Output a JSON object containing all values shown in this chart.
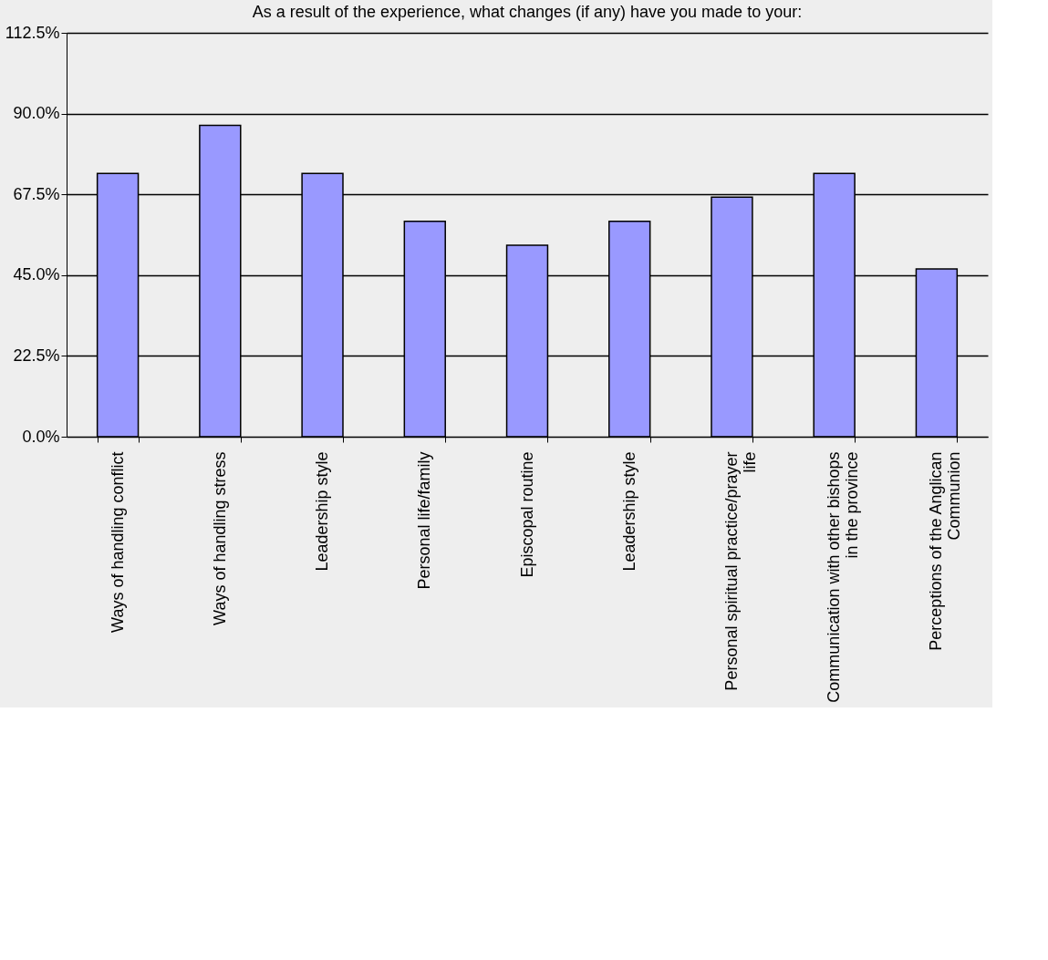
{
  "chart_data": {
    "type": "bar",
    "title": "As a result of the experience, what changes (if any) have you made to your:",
    "categories": [
      "Ways of handling conflict",
      "Ways of handling stress",
      "Leadership style",
      "Personal life/family",
      "Episcopal routine",
      "Leadership style",
      "Personal spiritual practice/prayer life",
      "Communication with other bishops in the province",
      "Perceptions of the Anglican Communion"
    ],
    "values": [
      73.3,
      86.7,
      73.3,
      60.0,
      53.3,
      60.0,
      66.7,
      73.3,
      46.7
    ],
    "color": "#9999ff",
    "ylim": [
      0,
      112.5
    ],
    "yticks": [
      {
        "value": 0,
        "label": "0.0%"
      },
      {
        "value": 22.5,
        "label": "22.5%"
      },
      {
        "value": 45,
        "label": "45.0%"
      },
      {
        "value": 67.5,
        "label": "67.5%"
      },
      {
        "value": 90,
        "label": "90.0%"
      },
      {
        "value": 112.5,
        "label": "112.5%"
      }
    ],
    "grid": "y"
  }
}
